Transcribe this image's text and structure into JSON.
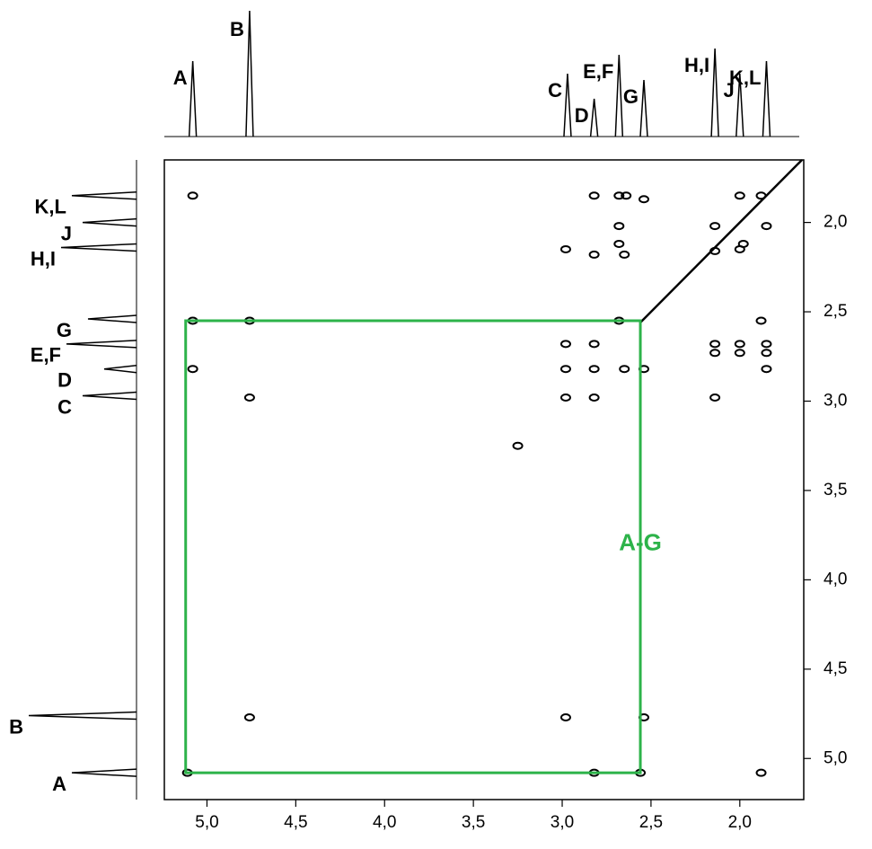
{
  "chart_data": {
    "type": "cosy",
    "xlim": [
      5.24,
      1.64
    ],
    "ylim": [
      1.65,
      5.23
    ],
    "xticks": [
      {
        "value": 5.0,
        "label": "5,0"
      },
      {
        "value": 4.5,
        "label": "4,5"
      },
      {
        "value": 4.0,
        "label": "4,0"
      },
      {
        "value": 3.5,
        "label": "3,5"
      },
      {
        "value": 3.0,
        "label": "3,0"
      },
      {
        "value": 2.5,
        "label": "2,5"
      },
      {
        "value": 2.0,
        "label": "2,0"
      }
    ],
    "yticks": [
      {
        "value": 2.0,
        "label": "2,0"
      },
      {
        "value": 2.5,
        "label": "2,5"
      },
      {
        "value": 3.0,
        "label": "3,0"
      },
      {
        "value": 3.5,
        "label": "3,5"
      },
      {
        "value": 4.0,
        "label": "4,0"
      },
      {
        "value": 4.5,
        "label": "4,5"
      },
      {
        "value": 5.0,
        "label": "5,0"
      }
    ],
    "peaks": {
      "labels": [
        "A",
        "B",
        "C",
        "D",
        "E,F",
        "G",
        "H,I",
        "J",
        "K,L"
      ],
      "x": [
        5.08,
        4.76,
        2.97,
        2.82,
        2.68,
        2.54,
        2.14,
        2.0,
        1.85
      ],
      "values": [
        0.6,
        1.0,
        0.5,
        0.3,
        0.65,
        0.45,
        0.7,
        0.5,
        0.6
      ]
    },
    "cross_peaks": {
      "x": [
        5.08,
        2.82,
        2.68,
        2.64,
        2.54,
        2.0,
        1.88,
        2.68,
        2.14,
        1.85,
        2.68,
        1.98,
        2.98,
        2.82,
        2.65,
        2.14,
        2.0,
        5.08,
        4.76,
        2.68,
        1.88,
        2.98,
        2.82,
        2.14,
        2.0,
        1.85,
        2.14,
        2.0,
        1.85,
        5.08,
        2.98,
        2.82,
        2.65,
        2.54,
        1.85,
        4.76,
        2.98,
        2.82,
        2.14,
        3.25,
        4.76,
        2.98,
        2.54,
        5.11,
        2.82,
        2.56,
        1.88
      ],
      "values": [
        1.85,
        1.85,
        1.85,
        1.85,
        1.87,
        1.85,
        1.85,
        2.02,
        2.02,
        2.02,
        2.12,
        2.12,
        2.15,
        2.18,
        2.18,
        2.16,
        2.15,
        2.55,
        2.55,
        2.55,
        2.55,
        2.68,
        2.68,
        2.68,
        2.68,
        2.68,
        2.73,
        2.73,
        2.73,
        2.82,
        2.82,
        2.82,
        2.82,
        2.82,
        2.82,
        2.98,
        2.98,
        2.98,
        2.98,
        3.25,
        4.77,
        4.77,
        4.77,
        5.08,
        5.08,
        5.08,
        5.08
      ]
    },
    "diagonal": [
      2.56,
      1.65
    ],
    "box": {
      "label": "A-G",
      "x": [
        5.12,
        2.56
      ],
      "y": [
        2.55,
        5.08
      ],
      "color": "#2db34a"
    }
  }
}
